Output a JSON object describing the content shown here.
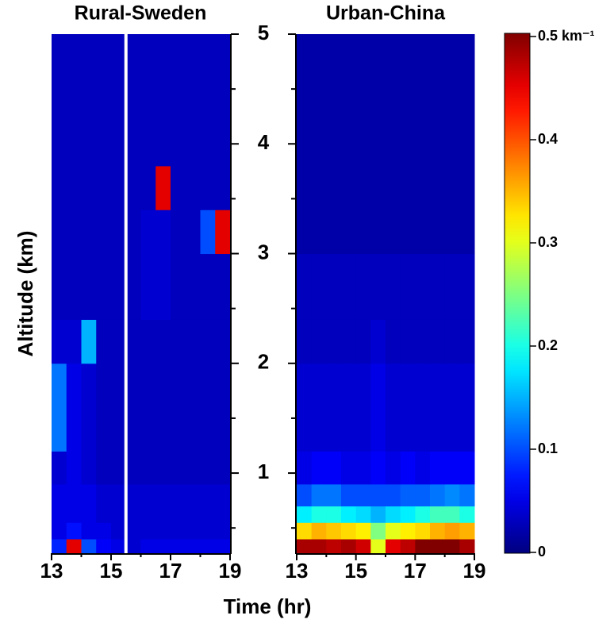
{
  "chart_data": {
    "type": "heatmap",
    "ylabel": "Altitude (km)",
    "xlabel": "Time (hr)",
    "ylim": [
      0.27,
      5
    ],
    "yticks": [
      1,
      2,
      3,
      4,
      5
    ],
    "yminor_ticks": [
      0.5,
      1.5,
      2.5,
      3.5,
      4.5
    ],
    "xlim": [
      13,
      19
    ],
    "xticks": [
      13,
      15,
      17,
      19
    ],
    "xminor_ticks": [
      14,
      16,
      18
    ],
    "colormap": "jet",
    "colorbar": {
      "lim": [
        0,
        0.5
      ],
      "ticks": [
        0,
        0.1,
        0.2,
        0.3,
        0.4,
        {
          "value": 0.5,
          "label": "0.5 km⁻¹"
        }
      ]
    },
    "y_edges": [
      0.27,
      0.4,
      0.55,
      0.7,
      0.9,
      1.2,
      2,
      2.4,
      3,
      3.4,
      3.8,
      5
    ],
    "x_edges": [
      13,
      13.5,
      14,
      14.5,
      15,
      15.5,
      16,
      16.5,
      17,
      17.5,
      18,
      18.5,
      19
    ],
    "panels": [
      {
        "title": "Rural-Sweden",
        "gaps": [
          15.5
        ],
        "values": [
          [
            0.08,
            0.45,
            0.1,
            0.06,
            0.05,
            0.04,
            0.05,
            0.05,
            0.05,
            0.05,
            0.05,
            0.05
          ],
          [
            0.05,
            0.07,
            0.05,
            0.05,
            0.04,
            0.04,
            0.04,
            0.04,
            0.04,
            0.04,
            0.04,
            0.04
          ],
          [
            0.05,
            0.05,
            0.05,
            0.04,
            0.04,
            0.04,
            0.04,
            0.04,
            0.04,
            0.04,
            0.04,
            0.04
          ],
          [
            0.05,
            0.05,
            0.05,
            0.04,
            0.04,
            0.04,
            0.04,
            0.04,
            0.04,
            0.04,
            0.04,
            0.04
          ],
          [
            0.04,
            0.05,
            0.04,
            0.03,
            0.03,
            0.03,
            0.03,
            0.03,
            0.03,
            0.03,
            0.03,
            0.03
          ],
          [
            0.12,
            0.05,
            0.04,
            0.03,
            0.03,
            0.03,
            0.03,
            0.03,
            0.03,
            0.03,
            0.03,
            0.03
          ],
          [
            0.04,
            0.04,
            0.15,
            0.03,
            0.03,
            0.03,
            0.03,
            0.03,
            0.03,
            0.03,
            0.03,
            0.03
          ],
          [
            0.03,
            0.03,
            0.03,
            0.03,
            0.03,
            0.03,
            0.04,
            0.04,
            0.03,
            0.03,
            0.03,
            0.03
          ],
          [
            0.03,
            0.03,
            0.03,
            0.03,
            0.03,
            0.03,
            0.04,
            0.04,
            0.03,
            0.03,
            0.1,
            0.45
          ],
          [
            0.03,
            0.03,
            0.03,
            0.03,
            0.03,
            0.03,
            0.03,
            0.45,
            0.03,
            0.03,
            0.03,
            0.03
          ],
          [
            0.03,
            0.03,
            0.03,
            0.03,
            0.03,
            0.03,
            0.03,
            0.03,
            0.03,
            0.03,
            0.03,
            0.03
          ]
        ]
      },
      {
        "title": "Urban-China",
        "values": [
          [
            0.48,
            0.48,
            0.47,
            0.48,
            0.46,
            0.3,
            0.45,
            0.47,
            0.5,
            0.5,
            0.5,
            0.48
          ],
          [
            0.33,
            0.35,
            0.34,
            0.33,
            0.32,
            0.25,
            0.3,
            0.32,
            0.33,
            0.35,
            0.36,
            0.35
          ],
          [
            0.18,
            0.2,
            0.2,
            0.18,
            0.17,
            0.15,
            0.17,
            0.18,
            0.2,
            0.22,
            0.22,
            0.2
          ],
          [
            0.1,
            0.12,
            0.12,
            0.1,
            0.1,
            0.1,
            0.1,
            0.11,
            0.11,
            0.12,
            0.13,
            0.12
          ],
          [
            0.05,
            0.06,
            0.06,
            0.05,
            0.05,
            0.06,
            0.05,
            0.06,
            0.05,
            0.06,
            0.06,
            0.06
          ],
          [
            0.04,
            0.04,
            0.04,
            0.04,
            0.04,
            0.05,
            0.04,
            0.04,
            0.04,
            0.04,
            0.04,
            0.04
          ],
          [
            0.03,
            0.03,
            0.03,
            0.03,
            0.03,
            0.04,
            0.03,
            0.03,
            0.03,
            0.03,
            0.03,
            0.03
          ],
          [
            0.03,
            0.03,
            0.03,
            0.03,
            0.03,
            0.03,
            0.03,
            0.03,
            0.03,
            0.03,
            0.03,
            0.03
          ],
          [
            0.02,
            0.02,
            0.02,
            0.02,
            0.02,
            0.02,
            0.02,
            0.02,
            0.02,
            0.02,
            0.02,
            0.02
          ],
          [
            0.02,
            0.02,
            0.02,
            0.02,
            0.02,
            0.02,
            0.02,
            0.02,
            0.02,
            0.02,
            0.02,
            0.02
          ],
          [
            0.02,
            0.02,
            0.02,
            0.02,
            0.02,
            0.02,
            0.02,
            0.02,
            0.02,
            0.02,
            0.02,
            0.02
          ]
        ]
      }
    ]
  }
}
